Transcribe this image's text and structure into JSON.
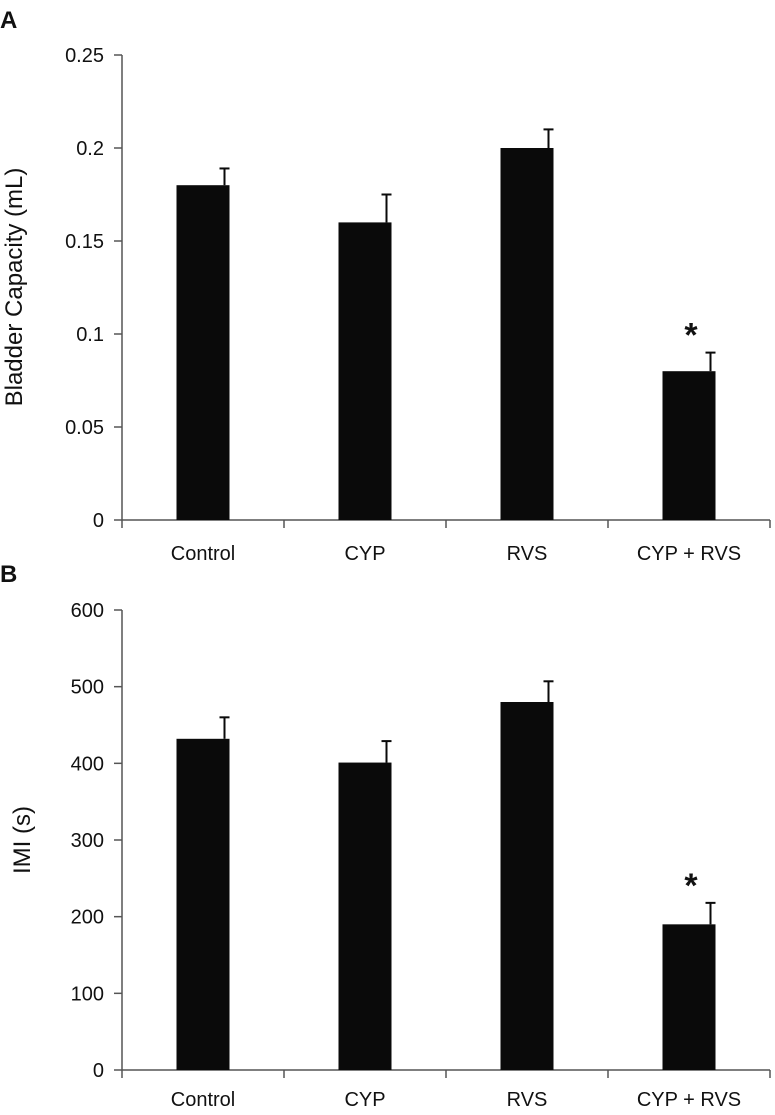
{
  "colors": {
    "bar": "#0a0a0a",
    "axis": "#555555",
    "text": "#111111",
    "background": "#ffffff"
  },
  "chart_data": [
    {
      "panel": "A",
      "type": "bar",
      "title": "",
      "xlabel": "",
      "ylabel": "Bladder Capacity (mL)",
      "categories": [
        "Control",
        "CYP",
        "RVS",
        "CYP + RVS"
      ],
      "values": [
        0.18,
        0.16,
        0.2,
        0.08
      ],
      "errors": [
        0.009,
        0.015,
        0.01,
        0.01
      ],
      "ylim": [
        0,
        0.25
      ],
      "yticks": [
        0,
        0.05,
        0.1,
        0.15,
        0.2,
        0.25
      ],
      "ytick_labels": [
        "0",
        "0.05",
        "0.1",
        "0.15",
        "0.2",
        "0.25"
      ],
      "annotations": [
        {
          "category": "CYP + RVS",
          "text": "*"
        }
      ],
      "grid": false,
      "legend": "none"
    },
    {
      "panel": "B",
      "type": "bar",
      "title": "",
      "xlabel": "",
      "ylabel": "IMI (s)",
      "categories": [
        "Control",
        "CYP",
        "RVS",
        "CYP + RVS"
      ],
      "values": [
        432,
        401,
        480,
        190
      ],
      "errors": [
        28,
        28,
        27,
        28
      ],
      "ylim": [
        0,
        600
      ],
      "yticks": [
        0,
        100,
        200,
        300,
        400,
        500,
        600
      ],
      "ytick_labels": [
        "0",
        "100",
        "200",
        "300",
        "400",
        "500",
        "600"
      ],
      "annotations": [
        {
          "category": "CYP + RVS",
          "text": "*"
        }
      ],
      "grid": false,
      "legend": "none"
    }
  ]
}
